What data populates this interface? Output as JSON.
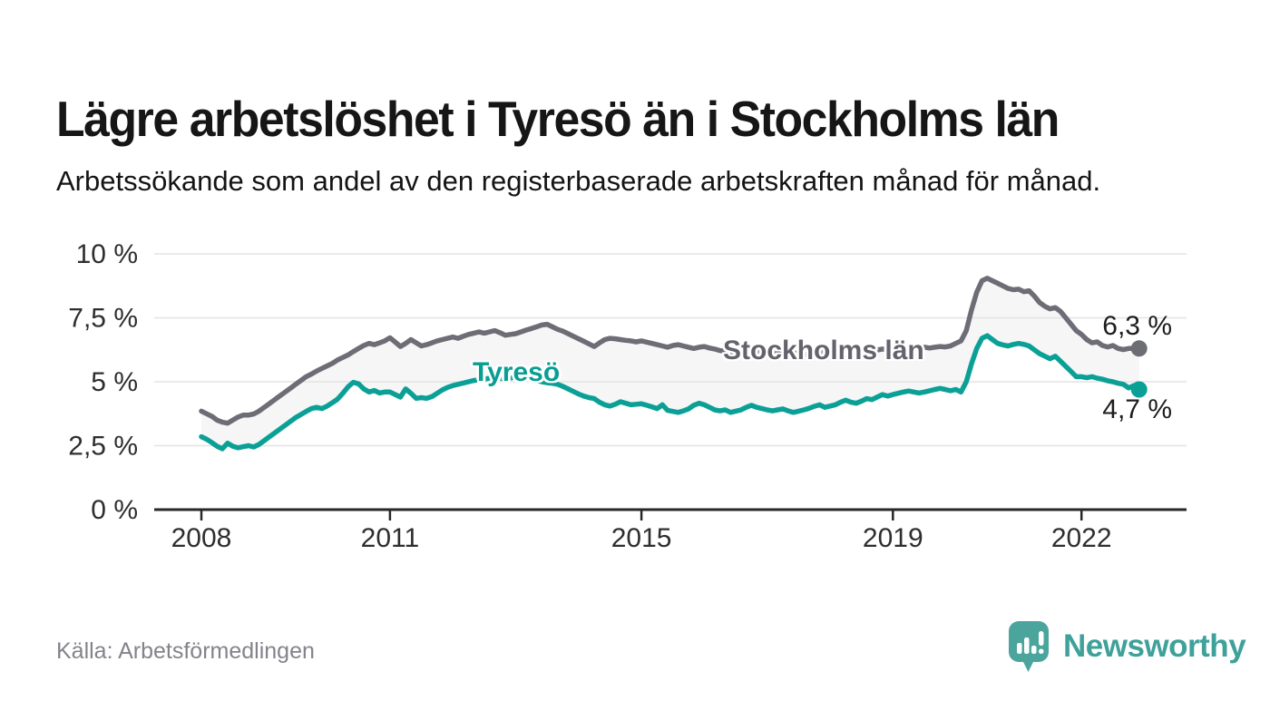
{
  "header": {
    "title": "Lägre arbetslöshet i Tyresö än i Stockholms län",
    "subtitle": "Arbetssökande som andel av den registerbaserade arbetskraften månad för månad."
  },
  "footer": {
    "source": "Källa: Arbetsförmedlingen",
    "brand": "Newsworthy"
  },
  "chart_data": {
    "type": "line",
    "title": "Lägre arbetslöshet i Tyresö än i Stockholms län",
    "x_start_year": 2008,
    "x_step_months": 1,
    "x_ticks": [
      {
        "year": 2008,
        "label": "2008"
      },
      {
        "year": 2011,
        "label": "2011"
      },
      {
        "year": 2015,
        "label": "2015"
      },
      {
        "year": 2019,
        "label": "2019"
      },
      {
        "year": 2022,
        "label": "2022"
      }
    ],
    "y_ticks": [
      {
        "value": 0,
        "label": "0 %"
      },
      {
        "value": 2.5,
        "label": "2,5 %"
      },
      {
        "value": 5,
        "label": "5 %"
      },
      {
        "value": 7.5,
        "label": "7,5 %"
      },
      {
        "value": 10,
        "label": "10 %"
      }
    ],
    "ylim": [
      0,
      10
    ],
    "grid": true,
    "band_fill": "#f6f6f7",
    "series": [
      {
        "name": "Stockholms län",
        "color": "#6d6d76",
        "end_label": "6,3 %",
        "end_value": 6.3,
        "values": [
          3.85,
          3.75,
          3.65,
          3.5,
          3.42,
          3.38,
          3.5,
          3.62,
          3.7,
          3.7,
          3.74,
          3.85,
          4.0,
          4.15,
          4.3,
          4.45,
          4.6,
          4.75,
          4.9,
          5.05,
          5.2,
          5.3,
          5.42,
          5.52,
          5.62,
          5.72,
          5.85,
          5.95,
          6.05,
          6.18,
          6.3,
          6.42,
          6.5,
          6.45,
          6.52,
          6.6,
          6.72,
          6.55,
          6.38,
          6.5,
          6.65,
          6.52,
          6.4,
          6.45,
          6.52,
          6.6,
          6.65,
          6.7,
          6.75,
          6.7,
          6.78,
          6.85,
          6.9,
          6.95,
          6.9,
          6.95,
          7.0,
          6.92,
          6.82,
          6.85,
          6.88,
          6.95,
          7.02,
          7.08,
          7.15,
          7.22,
          7.25,
          7.15,
          7.05,
          6.98,
          6.88,
          6.78,
          6.68,
          6.58,
          6.48,
          6.38,
          6.52,
          6.65,
          6.7,
          6.68,
          6.65,
          6.62,
          6.6,
          6.56,
          6.6,
          6.55,
          6.5,
          6.45,
          6.4,
          6.35,
          6.42,
          6.45,
          6.4,
          6.35,
          6.3,
          6.35,
          6.38,
          6.32,
          6.28,
          6.22,
          6.18,
          6.15,
          6.2,
          6.16,
          6.12,
          6.15,
          6.2,
          6.16,
          6.18,
          6.14,
          6.1,
          6.06,
          6.1,
          6.14,
          6.1,
          6.05,
          6.1,
          6.14,
          6.18,
          6.14,
          6.1,
          6.14,
          6.18,
          6.15,
          6.1,
          6.14,
          6.18,
          6.22,
          6.2,
          6.24,
          6.28,
          6.25,
          6.2,
          6.25,
          6.3,
          6.26,
          6.3,
          6.32,
          6.35,
          6.32,
          6.35,
          6.38,
          6.36,
          6.4,
          6.5,
          6.6,
          7.0,
          7.8,
          8.5,
          8.95,
          9.05,
          8.95,
          8.85,
          8.75,
          8.65,
          8.6,
          8.62,
          8.52,
          8.56,
          8.35,
          8.1,
          7.95,
          7.85,
          7.9,
          7.75,
          7.5,
          7.25,
          7.0,
          6.85,
          6.65,
          6.52,
          6.56,
          6.42,
          6.36,
          6.42,
          6.3,
          6.26,
          6.3,
          6.3,
          6.3
        ]
      },
      {
        "name": "Tyresö",
        "color": "#0ba096",
        "end_label": "4,7 %",
        "end_value": 4.7,
        "values": [
          2.85,
          2.75,
          2.62,
          2.48,
          2.38,
          2.6,
          2.48,
          2.42,
          2.46,
          2.5,
          2.45,
          2.55,
          2.7,
          2.85,
          3.0,
          3.15,
          3.3,
          3.45,
          3.6,
          3.72,
          3.84,
          3.95,
          4.0,
          3.95,
          4.05,
          4.18,
          4.32,
          4.55,
          4.8,
          4.98,
          4.92,
          4.72,
          4.6,
          4.66,
          4.56,
          4.6,
          4.6,
          4.5,
          4.4,
          4.72,
          4.55,
          4.35,
          4.38,
          4.35,
          4.42,
          4.55,
          4.68,
          4.78,
          4.85,
          4.9,
          4.95,
          5.0,
          5.05,
          5.08,
          5.1,
          5.14,
          5.18,
          5.14,
          5.1,
          5.14,
          5.2,
          5.24,
          5.18,
          5.12,
          5.06,
          5.0,
          4.96,
          4.94,
          4.9,
          4.82,
          4.72,
          4.62,
          4.52,
          4.44,
          4.38,
          4.34,
          4.2,
          4.1,
          4.05,
          4.12,
          4.22,
          4.16,
          4.1,
          4.12,
          4.14,
          4.08,
          4.02,
          3.95,
          4.1,
          3.88,
          3.84,
          3.8,
          3.86,
          3.94,
          4.08,
          4.16,
          4.1,
          4.0,
          3.9,
          3.86,
          3.9,
          3.8,
          3.85,
          3.9,
          4.0,
          4.08,
          4.0,
          3.95,
          3.9,
          3.86,
          3.9,
          3.94,
          3.86,
          3.8,
          3.85,
          3.9,
          3.96,
          4.04,
          4.1,
          4.0,
          4.05,
          4.1,
          4.2,
          4.28,
          4.2,
          4.16,
          4.24,
          4.34,
          4.3,
          4.4,
          4.5,
          4.44,
          4.5,
          4.55,
          4.6,
          4.64,
          4.6,
          4.56,
          4.6,
          4.65,
          4.7,
          4.74,
          4.7,
          4.65,
          4.7,
          4.6,
          5.0,
          5.7,
          6.3,
          6.7,
          6.8,
          6.65,
          6.5,
          6.44,
          6.4,
          6.46,
          6.5,
          6.46,
          6.4,
          6.25,
          6.1,
          6.0,
          5.9,
          6.0,
          5.8,
          5.6,
          5.4,
          5.2,
          5.2,
          5.16,
          5.2,
          5.14,
          5.1,
          5.04,
          5.0,
          4.94,
          4.9,
          4.76,
          4.85,
          4.7
        ]
      }
    ]
  }
}
